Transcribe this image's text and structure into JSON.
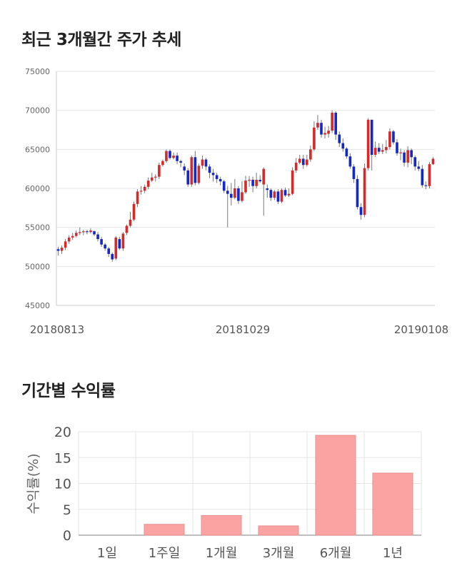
{
  "sections": {
    "price_trend_title": "최근 3개월간 주가 추세",
    "returns_title": "기간별 수익률"
  },
  "colors": {
    "up": "#d42a2a",
    "down": "#1428c8",
    "bar_fill": "#fba3a3",
    "bar_stroke": "#e88d8d",
    "grid": "#e6e6e6"
  },
  "chart_data": [
    {
      "type": "candlestick",
      "title": "최근 3개월간 주가 추세",
      "y_ticks": [
        "75000",
        "70000",
        "65000",
        "60000",
        "55000",
        "50000",
        "45000"
      ],
      "ylim": [
        45000,
        75000
      ],
      "x_tick_labels": [
        "20180813",
        "20181029",
        "20190108"
      ],
      "grid": true,
      "candles": [
        [
          52200,
          52000,
          51400,
          52500
        ],
        [
          52000,
          52400,
          51600,
          52700
        ],
        [
          52400,
          53200,
          52100,
          53500
        ],
        [
          53200,
          53700,
          52900,
          54000
        ],
        [
          53700,
          53900,
          53400,
          54300
        ],
        [
          53900,
          54300,
          53700,
          54600
        ],
        [
          54300,
          54400,
          54000,
          55000
        ],
        [
          54400,
          54500,
          54000,
          54700
        ],
        [
          54500,
          54400,
          54100,
          54700
        ],
        [
          54400,
          54600,
          54200,
          54900
        ],
        [
          54500,
          54100,
          53900,
          54600
        ],
        [
          54100,
          53500,
          53200,
          54400
        ],
        [
          53500,
          52800,
          52500,
          53800
        ],
        [
          52800,
          52300,
          52000,
          53000
        ],
        [
          52300,
          51600,
          51200,
          52500
        ],
        [
          51600,
          50900,
          50600,
          51800
        ],
        [
          51000,
          53700,
          50800,
          53900
        ],
        [
          53500,
          52300,
          52100,
          53800
        ],
        [
          52300,
          54200,
          52000,
          54400
        ],
        [
          54300,
          55200,
          54000,
          55400
        ],
        [
          55200,
          56000,
          55000,
          57000
        ],
        [
          56000,
          58000,
          55800,
          58300
        ],
        [
          58000,
          59600,
          57600,
          59900
        ],
        [
          59600,
          59700,
          59200,
          60300
        ],
        [
          59700,
          60200,
          59400,
          60500
        ],
        [
          60200,
          61000,
          59900,
          61400
        ],
        [
          61000,
          61400,
          60800,
          62000
        ],
        [
          61400,
          61500,
          60900,
          61800
        ],
        [
          61500,
          63000,
          61200,
          63300
        ],
        [
          63000,
          63500,
          62800,
          63700
        ],
        [
          63500,
          64800,
          63300,
          65000
        ],
        [
          64800,
          63900,
          63700,
          65000
        ],
        [
          63900,
          64200,
          63700,
          64600
        ],
        [
          64200,
          63500,
          63100,
          64600
        ],
        [
          63500,
          63300,
          62700,
          63700
        ],
        [
          62800,
          62300,
          61700,
          63200
        ],
        [
          62300,
          60500,
          60200,
          62600
        ],
        [
          60500,
          64000,
          60200,
          64200
        ],
        [
          64000,
          60700,
          60400,
          64800
        ],
        [
          60700,
          62900,
          60500,
          63200
        ],
        [
          62900,
          63700,
          62500,
          64200
        ],
        [
          63700,
          62800,
          62300,
          63900
        ],
        [
          62800,
          62000,
          61300,
          63100
        ],
        [
          62000,
          61700,
          60900,
          62500
        ],
        [
          61700,
          61200,
          60700,
          62000
        ],
        [
          61200,
          60900,
          60400,
          61500
        ],
        [
          60900,
          59700,
          59400,
          61100
        ],
        [
          59700,
          59300,
          55000,
          60300
        ],
        [
          59300,
          58800,
          57800,
          60700
        ],
        [
          58800,
          60000,
          58600,
          61200
        ],
        [
          60000,
          58400,
          58000,
          60300
        ],
        [
          58400,
          59500,
          58200,
          60900
        ],
        [
          59500,
          61000,
          59300,
          61600
        ],
        [
          61000,
          61100,
          60200,
          61600
        ],
        [
          61100,
          60300,
          59500,
          61500
        ],
        [
          60300,
          61100,
          60000,
          62000
        ],
        [
          61100,
          60900,
          60700,
          61700
        ],
        [
          60500,
          62500,
          56500,
          62700
        ],
        [
          60000,
          59800,
          58800,
          60500
        ],
        [
          59800,
          58800,
          58400,
          60000
        ],
        [
          58800,
          59600,
          58500,
          59800
        ],
        [
          59600,
          58300,
          58000,
          59900
        ],
        [
          58300,
          59800,
          58100,
          60000
        ],
        [
          59800,
          59100,
          58900,
          60100
        ],
        [
          59100,
          59300,
          58900,
          60000
        ],
        [
          59300,
          62300,
          59100,
          62700
        ],
        [
          62300,
          63300,
          62000,
          63900
        ],
        [
          63300,
          63800,
          63100,
          64300
        ],
        [
          63800,
          63000,
          62500,
          64300
        ],
        [
          63000,
          63700,
          62800,
          64300
        ],
        [
          63700,
          65000,
          63400,
          65500
        ],
        [
          65000,
          67800,
          64800,
          68600
        ],
        [
          67800,
          68400,
          67500,
          69400
        ],
        [
          68400,
          66900,
          66500,
          68800
        ],
        [
          66900,
          67100,
          66400,
          67900
        ],
        [
          67000,
          67400,
          66500,
          68000
        ],
        [
          67400,
          69700,
          67100,
          70000
        ],
        [
          69700,
          66900,
          66200,
          69900
        ],
        [
          66900,
          65800,
          65300,
          67300
        ],
        [
          65800,
          65100,
          64700,
          66400
        ],
        [
          65100,
          64100,
          63800,
          65300
        ],
        [
          64100,
          62800,
          62500,
          64500
        ],
        [
          62800,
          61200,
          60700,
          63100
        ],
        [
          61200,
          57600,
          57300,
          61700
        ],
        [
          57600,
          56600,
          56000,
          58100
        ],
        [
          56600,
          62600,
          56300,
          63200
        ],
        [
          62600,
          68800,
          62300,
          69000
        ],
        [
          68800,
          64300,
          62300,
          68800
        ],
        [
          64300,
          65200,
          64000,
          66000
        ],
        [
          65200,
          64700,
          64400,
          65800
        ],
        [
          64700,
          64900,
          64400,
          65700
        ],
        [
          64900,
          65300,
          64500,
          66200
        ],
        [
          65300,
          67300,
          65000,
          67700
        ],
        [
          67300,
          65900,
          65600,
          67500
        ],
        [
          65900,
          64500,
          64200,
          66300
        ],
        [
          64500,
          64600,
          63600,
          65100
        ],
        [
          64600,
          63300,
          62800,
          64900
        ],
        [
          63300,
          64900,
          62700,
          65400
        ],
        [
          64900,
          64000,
          63100,
          65100
        ],
        [
          64000,
          62800,
          62300,
          64200
        ],
        [
          62800,
          62500,
          62200,
          63500
        ],
        [
          62500,
          60400,
          60100,
          63000
        ],
        [
          60400,
          60300,
          59900,
          60900
        ],
        [
          60300,
          63100,
          60000,
          63400
        ],
        [
          63100,
          63800,
          63000,
          64000
        ]
      ]
    },
    {
      "type": "bar",
      "title": "기간별 수익률",
      "categories": [
        "1일",
        "1주일",
        "1개월",
        "3개월",
        "6개월",
        "1년"
      ],
      "values": [
        0,
        2.1,
        3.8,
        1.8,
        19.3,
        12.0
      ],
      "ylabel": "수익률(%)",
      "ylim": [
        0,
        20
      ],
      "y_ticks": [
        "0",
        "5",
        "10",
        "15",
        "20"
      ],
      "grid": true
    }
  ]
}
